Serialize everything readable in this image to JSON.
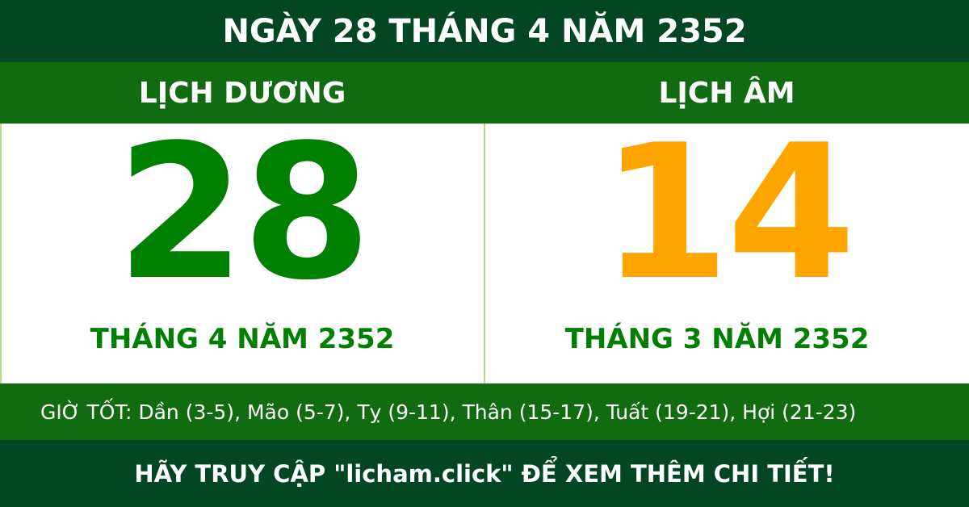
{
  "title": "NGÀY 28 THÁNG 4 NĂM 2352",
  "solar": {
    "label": "LỊCH DƯƠNG",
    "day": "28",
    "month_year": "THÁNG 4 NĂM 2352"
  },
  "lunar": {
    "label": "LỊCH ÂM",
    "day": "14",
    "month_year": "THÁNG 3 NĂM 2352"
  },
  "good_hours": "GIỜ TỐT: Dần (3-5), Mão (5-7), Tỵ (9-11), Thân (15-17), Tuất (19-21), Hợi (21-23)",
  "footer": "HÃY TRUY CẬP \"licham.click\" ĐỂ XEM THÊM CHI TIẾT!",
  "colors": {
    "dark_green": "#034622",
    "band_green": "#116b10",
    "solar_green": "#008000",
    "lunar_orange": "#ffa500"
  }
}
